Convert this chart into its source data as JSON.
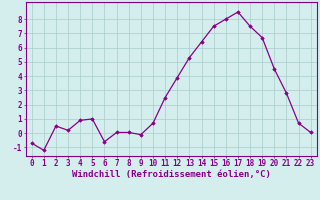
{
  "x": [
    0,
    1,
    2,
    3,
    4,
    5,
    6,
    7,
    8,
    9,
    10,
    11,
    12,
    13,
    14,
    15,
    16,
    17,
    18,
    19,
    20,
    21,
    22,
    23
  ],
  "y": [
    -0.7,
    -1.2,
    0.5,
    0.2,
    0.9,
    1.0,
    -0.6,
    0.05,
    0.05,
    -0.1,
    0.7,
    2.5,
    3.9,
    5.3,
    6.4,
    7.5,
    8.0,
    8.5,
    7.5,
    6.7,
    4.5,
    2.8,
    0.7,
    0.05
  ],
  "line_color": "#880088",
  "marker": "D",
  "marker_size": 1.8,
  "bg_color": "#d4eeee",
  "grid_color": "#aacccc",
  "xlabel": "Windchill (Refroidissement éolien,°C)",
  "ylabel_ticks": [
    -1,
    0,
    1,
    2,
    3,
    4,
    5,
    6,
    7,
    8
  ],
  "xlim": [
    -0.5,
    23.5
  ],
  "ylim": [
    -1.6,
    9.2
  ],
  "tick_color": "#880088",
  "tick_fontsize": 5.5,
  "xlabel_fontsize": 6.5,
  "font_family": "monospace",
  "linewidth": 0.9
}
